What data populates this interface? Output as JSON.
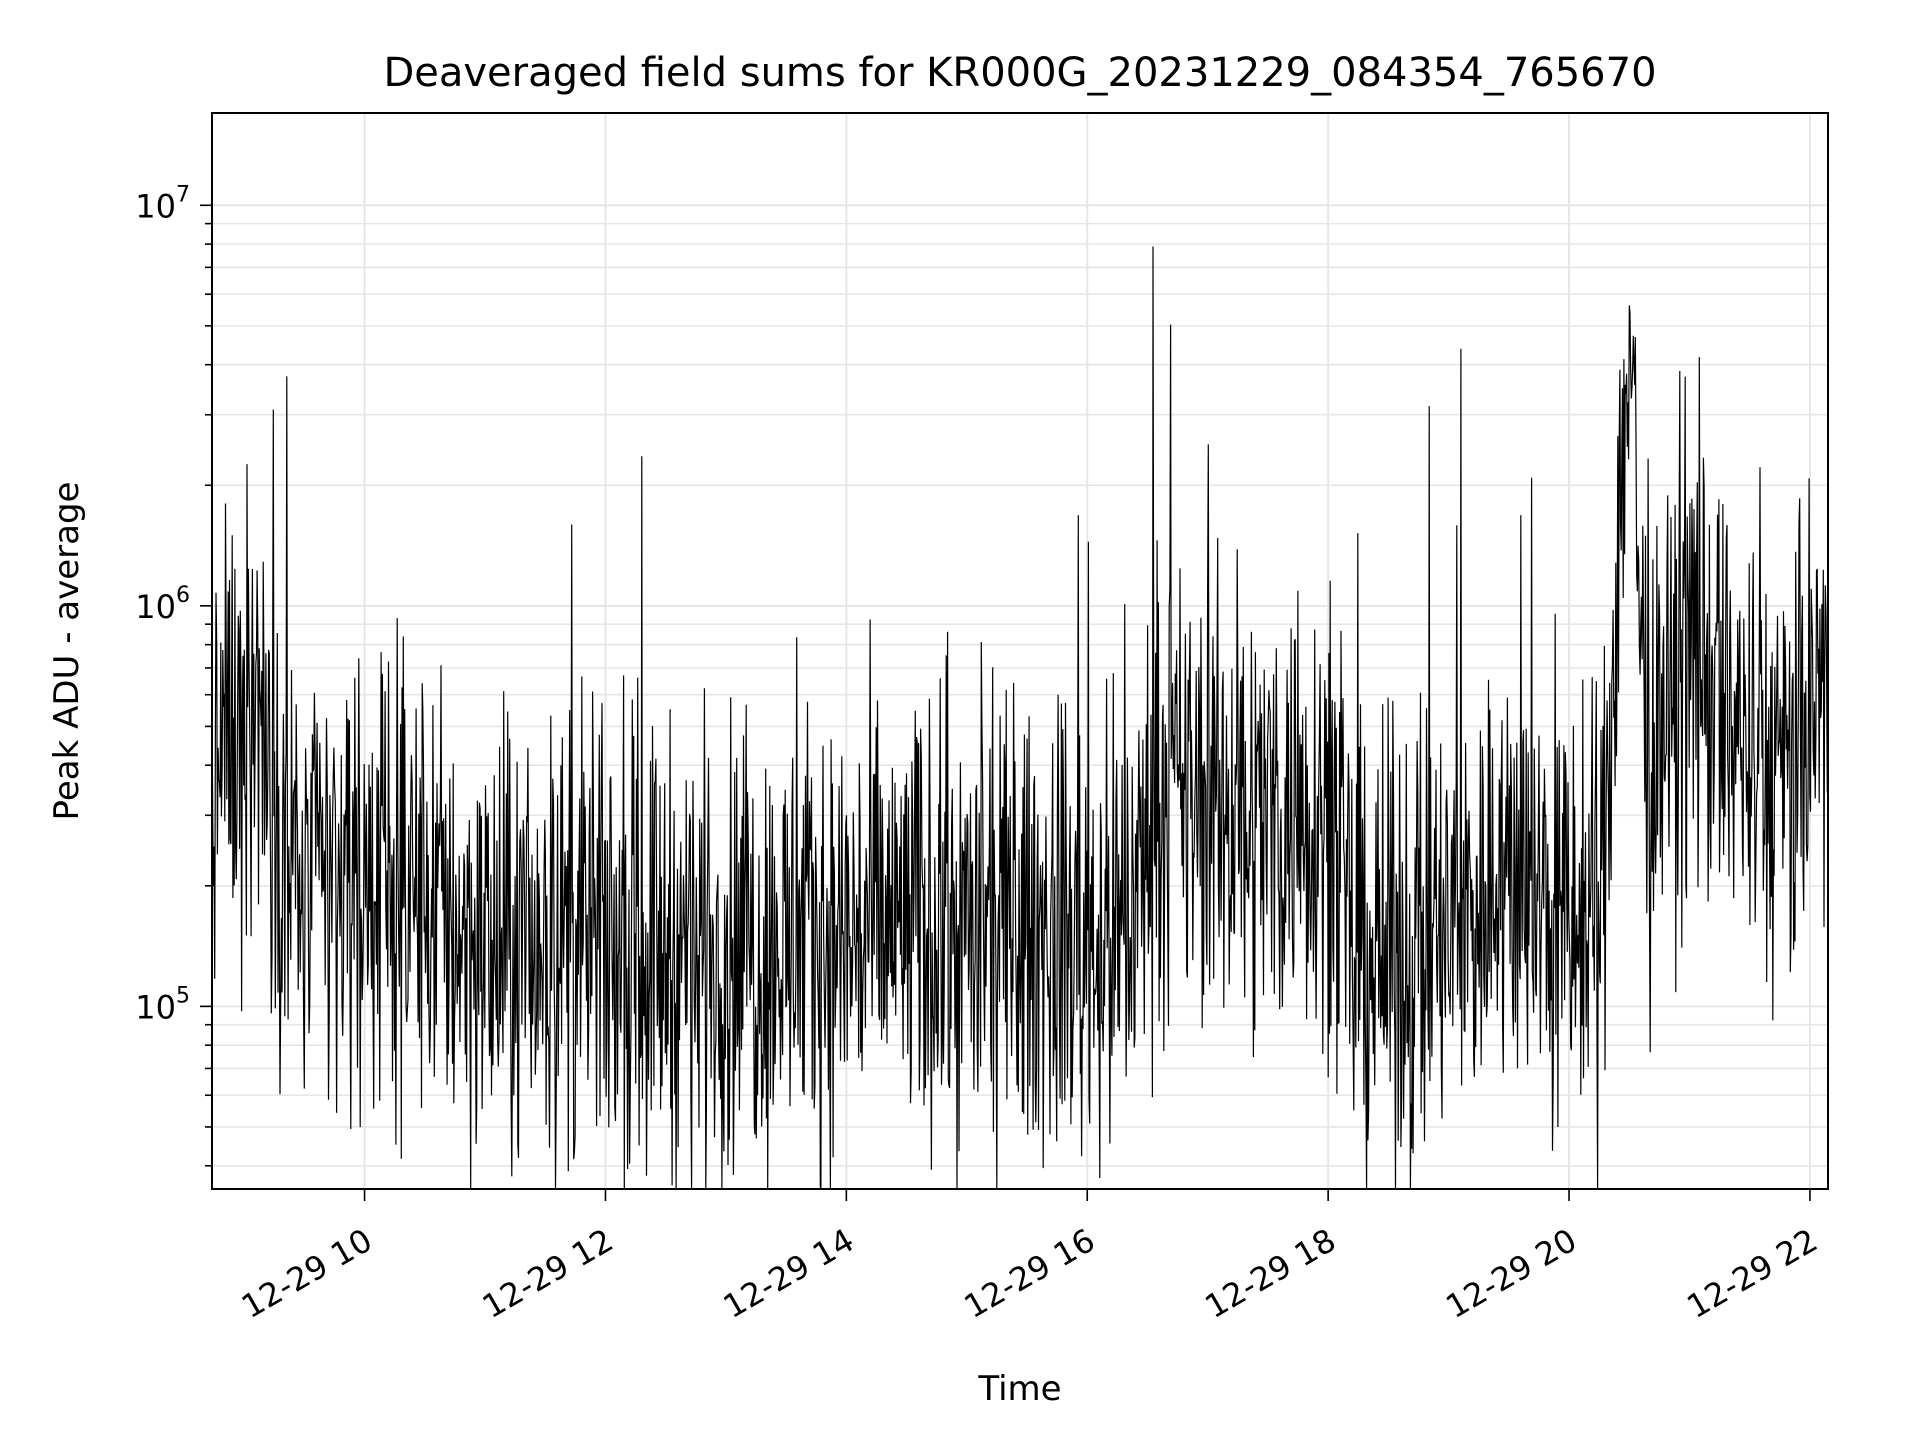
{
  "chart_data": {
    "type": "line",
    "title": "Deaveraged field sums for KR000G_20231229_084354_765670",
    "xlabel": "Time",
    "ylabel": "Peak ADU - average",
    "yscale": "log",
    "grid": true,
    "line_color": "#000000",
    "grid_color": "#e6e6e6",
    "xlim": [
      "2023-12-29 08:44",
      "2023-12-29 22:09"
    ],
    "ylim": [
      35000,
      17000000
    ],
    "x_ticks": [
      "12-29 10",
      "12-29 12",
      "12-29 14",
      "12-29 16",
      "12-29 18",
      "12-29 20",
      "12-29 22"
    ],
    "y_ticks": [
      {
        "base": "10",
        "exp": "5"
      },
      {
        "base": "10",
        "exp": "6"
      },
      {
        "base": "10",
        "exp": "7"
      }
    ],
    "series": [
      {
        "x": [
          "2023-12-29 08:44",
          "2023-12-29 08:50",
          "2023-12-29 08:56",
          "2023-12-29 09:02",
          "2023-12-29 09:08",
          "2023-12-29 09:14",
          "2023-12-29 09:20",
          "2023-12-29 09:30",
          "2023-12-29 09:40",
          "2023-12-29 10:00",
          "2023-12-29 10:30",
          "2023-12-29 11:00",
          "2023-12-29 11:15",
          "2023-12-29 11:30",
          "2023-12-29 12:00",
          "2023-12-29 12:30",
          "2023-12-29 13:00",
          "2023-12-29 13:30",
          "2023-12-29 14:00",
          "2023-12-29 14:30",
          "2023-12-29 15:00",
          "2023-12-29 15:30",
          "2023-12-29 16:00",
          "2023-12-29 16:20",
          "2023-12-29 16:35",
          "2023-12-29 17:00",
          "2023-12-29 17:30",
          "2023-12-29 18:00",
          "2023-12-29 18:10",
          "2023-12-29 18:30",
          "2023-12-29 19:00",
          "2023-12-29 19:30",
          "2023-12-29 20:00",
          "2023-12-29 20:15",
          "2023-12-29 20:30",
          "2023-12-29 20:40",
          "2023-12-29 21:00",
          "2023-12-29 21:30",
          "2023-12-29 21:50",
          "2023-12-29 22:09"
        ],
        "y": [
          300000,
          500000,
          450000,
          600000,
          550000,
          400000,
          230000,
          200000,
          200000,
          210000,
          190000,
          140000,
          130000,
          150000,
          140000,
          140000,
          140000,
          140000,
          150000,
          160000,
          150000,
          150000,
          150000,
          150000,
          350000,
          320000,
          300000,
          320000,
          140000,
          130000,
          150000,
          220000,
          150000,
          150000,
          5000000,
          300000,
          800000,
          400000,
          350000,
          700000
        ]
      }
    ]
  }
}
